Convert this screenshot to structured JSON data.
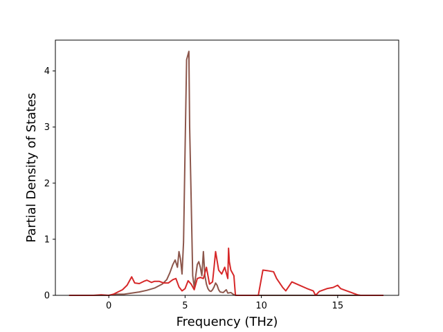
{
  "chart_data": {
    "type": "line",
    "title": "",
    "xlabel": "Frequency (THz)",
    "ylabel": "Partial Density of States",
    "xlim": [
      -3.5,
      19.0
    ],
    "ylim": [
      0,
      4.55
    ],
    "xticks": [
      0,
      5,
      10,
      15
    ],
    "yticks": [
      0,
      1,
      2,
      3,
      4
    ],
    "grid": false,
    "legend": "none",
    "series": [
      {
        "color": "#8c564b",
        "x": [
          -2.6,
          -1.0,
          -0.5,
          0.0,
          0.5,
          1.0,
          1.5,
          2.0,
          2.5,
          3.0,
          3.5,
          3.8,
          4.0,
          4.2,
          4.35,
          4.5,
          4.6,
          4.7,
          4.8,
          4.9,
          5.0,
          5.1,
          5.2,
          5.25,
          5.3,
          5.4,
          5.5,
          5.6,
          5.8,
          5.9,
          6.0,
          6.1,
          6.2,
          6.3,
          6.4,
          6.5,
          6.6,
          6.7,
          6.8,
          6.9,
          7.0,
          7.1,
          7.2,
          7.3,
          7.5,
          7.7,
          7.8,
          8.0,
          8.2,
          8.4,
          9.0,
          12.0,
          16.0,
          18.0
        ],
        "y": [
          0.0,
          0.0,
          0.0,
          0.0,
          0.02,
          0.02,
          0.04,
          0.06,
          0.09,
          0.13,
          0.2,
          0.28,
          0.4,
          0.55,
          0.63,
          0.5,
          0.78,
          0.65,
          0.38,
          0.95,
          2.6,
          4.2,
          4.3,
          4.35,
          3.0,
          1.7,
          0.35,
          0.15,
          0.55,
          0.6,
          0.5,
          0.35,
          0.78,
          0.35,
          0.2,
          0.12,
          0.08,
          0.07,
          0.1,
          0.15,
          0.22,
          0.18,
          0.1,
          0.06,
          0.05,
          0.1,
          0.04,
          0.05,
          0.01,
          0.0,
          0.0,
          0.0,
          0.0,
          0.0
        ]
      },
      {
        "color": "#d62728",
        "x": [
          -2.6,
          -1.0,
          -0.5,
          0.0,
          0.3,
          0.6,
          0.9,
          1.2,
          1.5,
          1.7,
          2.0,
          2.3,
          2.5,
          2.8,
          3.0,
          3.3,
          3.6,
          3.9,
          4.2,
          4.4,
          4.6,
          4.8,
          5.0,
          5.2,
          5.4,
          5.6,
          5.8,
          6.0,
          6.2,
          6.4,
          6.6,
          6.8,
          6.9,
          7.0,
          7.2,
          7.4,
          7.6,
          7.8,
          7.85,
          7.9,
          8.0,
          8.2,
          8.3,
          9.8,
          10.1,
          10.4,
          10.8,
          11.0,
          11.4,
          11.6,
          12.0,
          12.5,
          13.0,
          13.4,
          13.55,
          13.8,
          14.3,
          14.7,
          15.0,
          15.2,
          15.6,
          16.0,
          16.3,
          16.5,
          18.0
        ],
        "y": [
          0.0,
          0.0,
          0.01,
          0.0,
          0.02,
          0.06,
          0.1,
          0.18,
          0.33,
          0.22,
          0.21,
          0.25,
          0.27,
          0.23,
          0.25,
          0.25,
          0.22,
          0.22,
          0.28,
          0.3,
          0.15,
          0.08,
          0.12,
          0.26,
          0.2,
          0.1,
          0.3,
          0.32,
          0.3,
          0.5,
          0.2,
          0.24,
          0.5,
          0.78,
          0.45,
          0.38,
          0.5,
          0.3,
          0.84,
          0.6,
          0.45,
          0.35,
          0.0,
          0.0,
          0.45,
          0.44,
          0.42,
          0.3,
          0.14,
          0.08,
          0.24,
          0.18,
          0.12,
          0.08,
          0.0,
          0.07,
          0.12,
          0.14,
          0.18,
          0.12,
          0.08,
          0.04,
          0.01,
          0.0,
          0.0
        ]
      }
    ]
  }
}
